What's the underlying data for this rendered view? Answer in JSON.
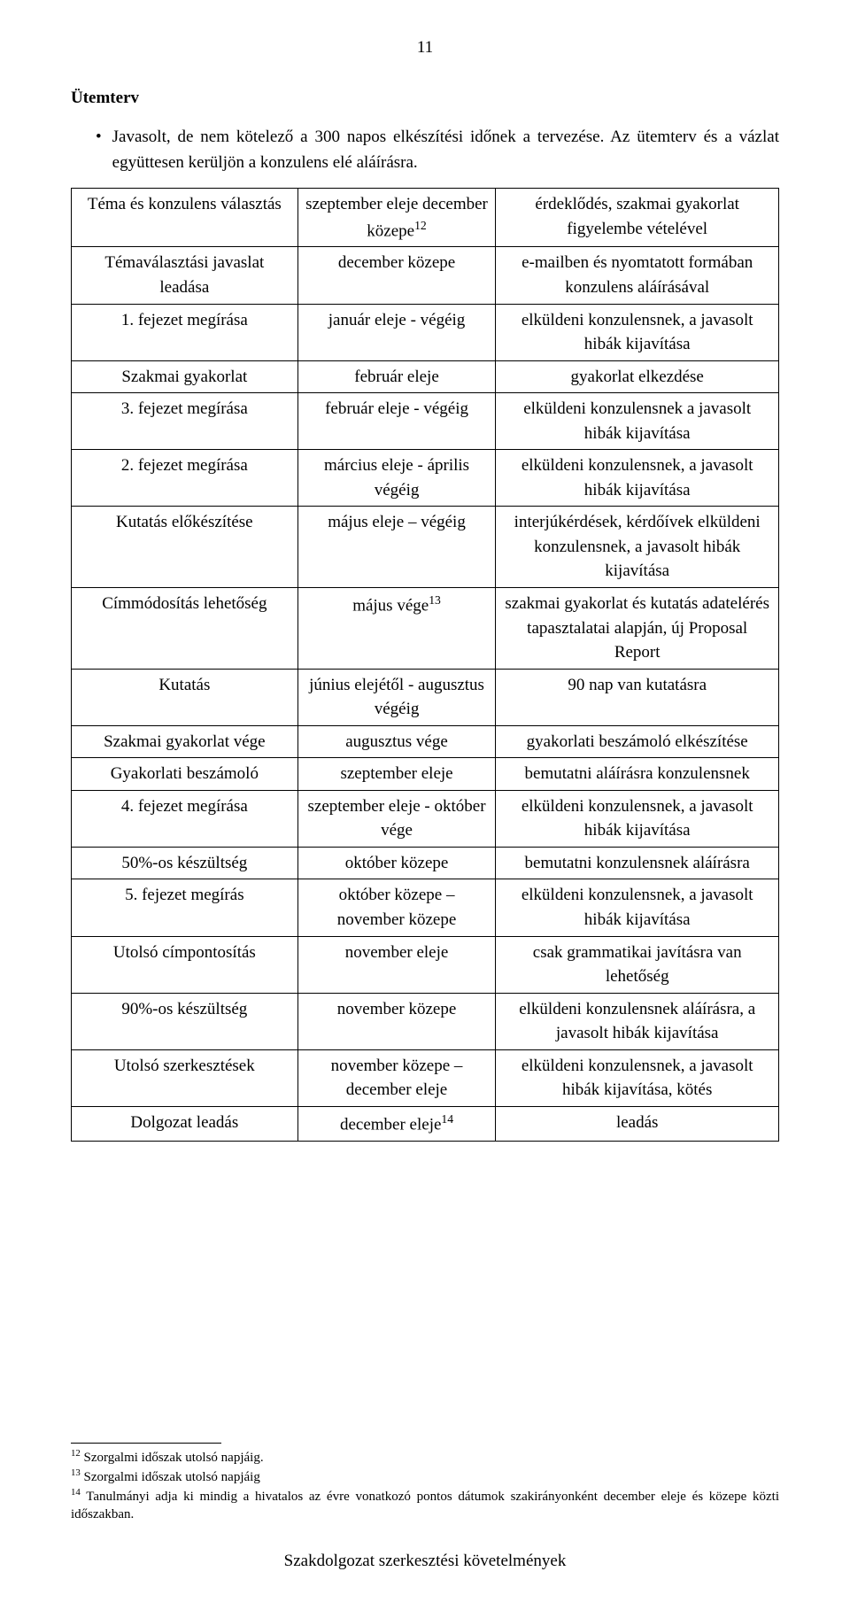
{
  "pageNumber": "11",
  "sectionTitle": "Ütemterv",
  "bullets": [
    "Javasolt, de nem kötelező a 300 napos elkészítési időnek a tervezése. Az ütemterv és a vázlat együttesen kerüljön a konzulens elé aláírásra."
  ],
  "table": {
    "rows": [
      {
        "c1": "Téma és konzulens választás",
        "c2": "szeptember eleje december közepe",
        "c2sup": "12",
        "c3": "érdeklődés, szakmai gyakorlat figyelembe vételével"
      },
      {
        "c1": "Témaválasztási javaslat leadása",
        "c2": "december közepe",
        "c3": "e-mailben és nyomtatott formában konzulens aláírásával"
      },
      {
        "c1": "1. fejezet megírása",
        "c2": "január eleje - végéig",
        "c3": "elküldeni konzulensnek, a javasolt hibák kijavítása"
      },
      {
        "c1": "Szakmai gyakorlat",
        "c2": "február eleje",
        "c3": "gyakorlat elkezdése"
      },
      {
        "c1": "3. fejezet megírása",
        "c2": "február eleje - végéig",
        "c3": "elküldeni konzulensnek a javasolt hibák kijavítása"
      },
      {
        "c1": "2. fejezet megírása",
        "c2": "március eleje - április végéig",
        "c3": "elküldeni konzulensnek, a javasolt hibák kijavítása"
      },
      {
        "c1": "Kutatás előkészítése",
        "c2": "május eleje – végéig",
        "c3": "interjúkérdések, kérdőívek elküldeni konzulensnek, a javasolt hibák kijavítása"
      },
      {
        "c1": "Címmódosítás lehetőség",
        "c2": "május vége",
        "c2sup": "13",
        "c3": "szakmai gyakorlat és kutatás adatelérés tapasztalatai alapján, új Proposal Report"
      },
      {
        "c1": "Kutatás",
        "c2": "június elejétől - augusztus végéig",
        "c3": "90 nap van kutatásra"
      },
      {
        "c1": "Szakmai gyakorlat vége",
        "c2": "augusztus vége",
        "c3": "gyakorlati beszámoló elkészítése"
      },
      {
        "c1": "Gyakorlati beszámoló",
        "c2": "szeptember eleje",
        "c3": "bemutatni aláírásra konzulensnek"
      },
      {
        "c1": "4. fejezet megírása",
        "c2": "szeptember eleje - október vége",
        "c3": "elküldeni konzulensnek, a javasolt hibák kijavítása"
      },
      {
        "c1": "50%-os készültség",
        "c2": "október közepe",
        "c3": "bemutatni konzulensnek aláírásra"
      },
      {
        "c1": "5. fejezet megírás",
        "c2": "október közepe – november közepe",
        "c3": "elküldeni konzulensnek, a javasolt hibák kijavítása"
      },
      {
        "c1": "Utolsó címpontosítás",
        "c2": "november eleje",
        "c3": "csak grammatikai javításra van lehetőség"
      },
      {
        "c1": "90%-os készültség",
        "c2": "november közepe",
        "c3": "elküldeni konzulensnek aláírásra, a javasolt hibák kijavítása"
      },
      {
        "c1": "Utolsó szerkesztések",
        "c2": "november közepe – december eleje",
        "c3": "elküldeni konzulensnek, a javasolt hibák kijavítása, kötés"
      },
      {
        "c1": "Dolgozat leadás",
        "c2": "december eleje",
        "c2sup": "14",
        "c3": "leadás"
      }
    ]
  },
  "footnotes": [
    {
      "num": "12",
      "text": "Szorgalmi időszak utolsó napjáig."
    },
    {
      "num": "13",
      "text": "Szorgalmi időszak utolsó napjáig"
    },
    {
      "num": "14",
      "text": "Tanulmányi adja ki mindig a hivatalos az évre vonatkozó pontos dátumok szakirányonként december eleje és közepe közti időszakban."
    }
  ],
  "footerText": "Szakdolgozat szerkesztési követelmények"
}
